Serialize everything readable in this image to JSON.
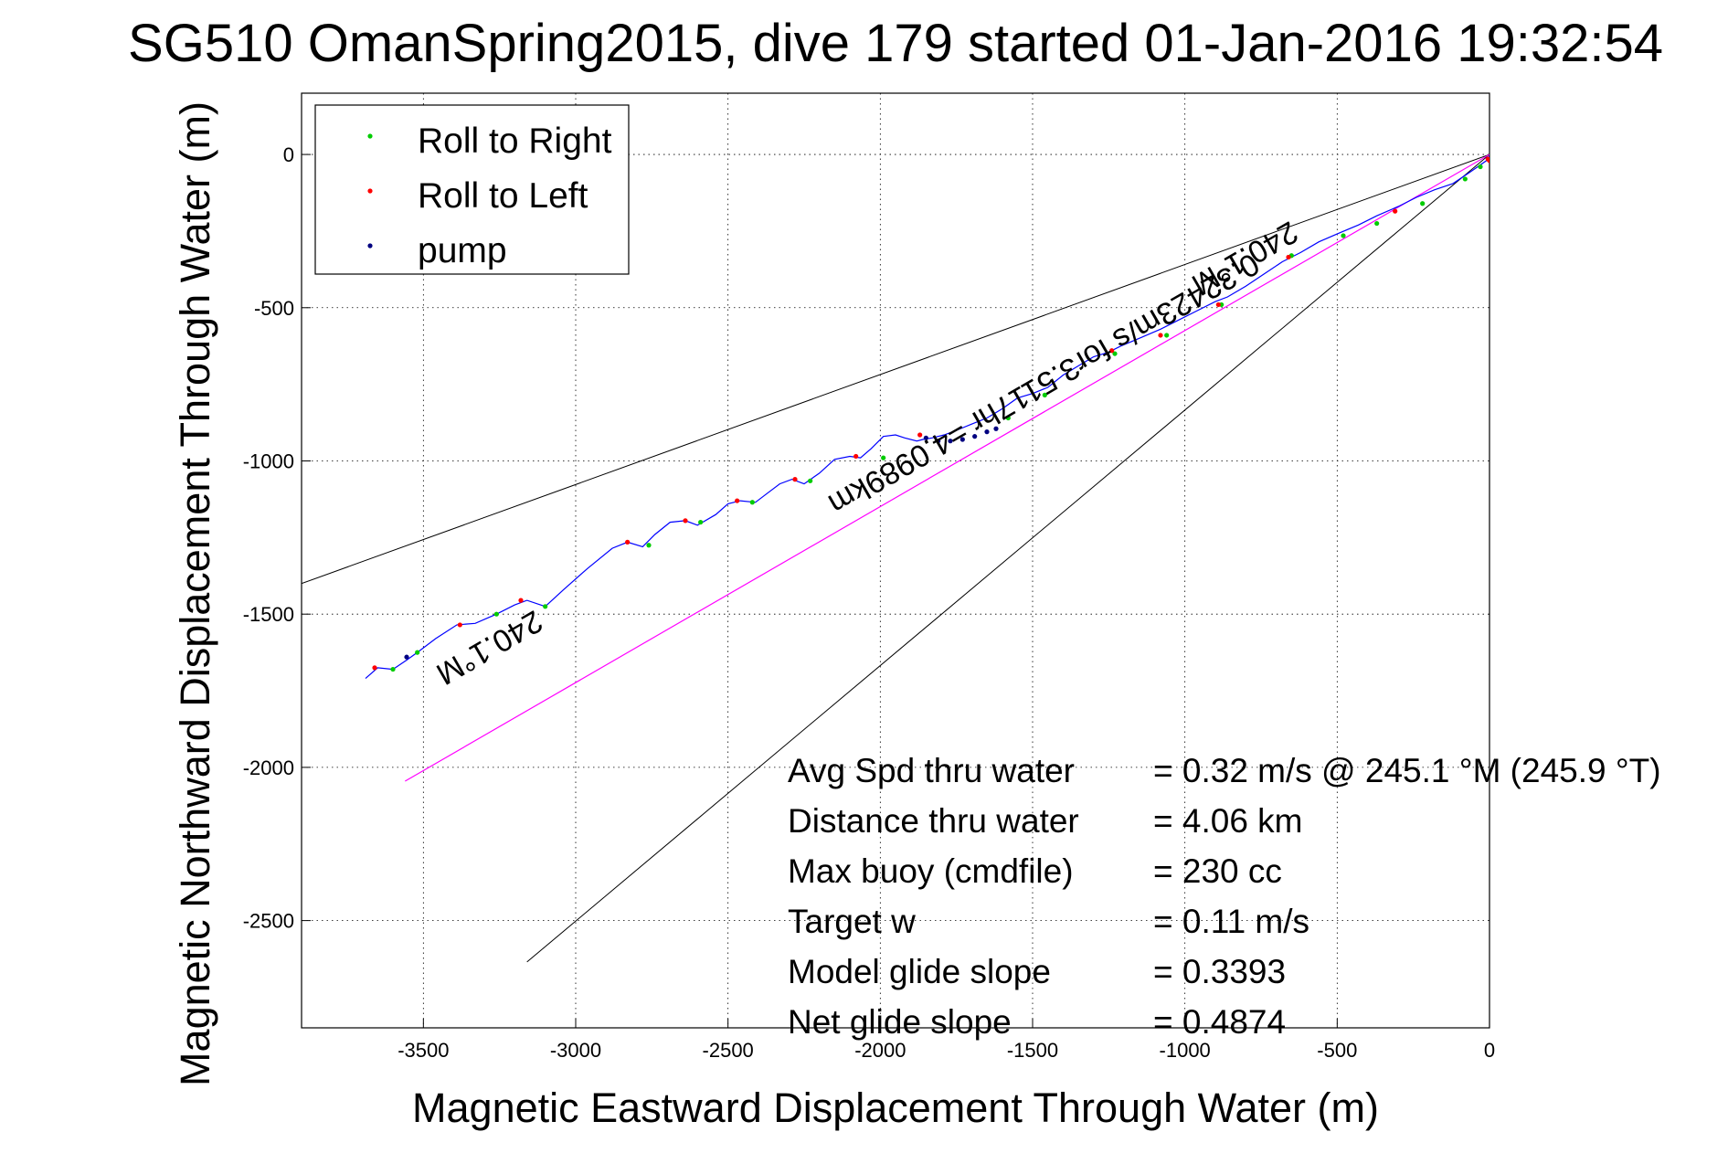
{
  "chart_data": {
    "type": "line",
    "title": "SG510 OmanSpring2015, dive 179 started 01-Jan-2016 19:32:54",
    "xlabel": "Magnetic Eastward Displacement Through Water (m)",
    "ylabel": "Magnetic Northward Displacement Through Water (m)",
    "xlim": [
      -3900,
      0
    ],
    "ylim": [
      -2850,
      200
    ],
    "grid": true,
    "x_ticks": [
      -3500,
      -3000,
      -2500,
      -2000,
      -1500,
      -1000,
      -500,
      0
    ],
    "y_ticks": [
      0,
      -500,
      -1000,
      -1500,
      -2000,
      -2500
    ],
    "legend": {
      "placement": "top-left",
      "entries": [
        {
          "label": "Roll to Right",
          "color": "#00cc00"
        },
        {
          "label": "Roll to Left",
          "color": "#ff0000"
        },
        {
          "label": "pump",
          "color": "#000080"
        }
      ]
    },
    "colors": {
      "track": "#0000ff",
      "heading_line": "#ff00ff",
      "wedge": "#000000"
    },
    "track": {
      "x": [
        -3690,
        -3650,
        -3600,
        -3555,
        -3520,
        -3460,
        -3390,
        -3330,
        -3260,
        -3200,
        -3160,
        -3100,
        -3040,
        -2960,
        -2880,
        -2830,
        -2780,
        -2740,
        -2690,
        -2640,
        -2600,
        -2540,
        -2500,
        -2460,
        -2410,
        -2370,
        -2330,
        -2290,
        -2250,
        -2200,
        -2150,
        -2100,
        -2065,
        -2030,
        -1990,
        -1950,
        -1920,
        -1880,
        -1860,
        -1830,
        -1790,
        -1750,
        -1700,
        -1650,
        -1600,
        -1550,
        -1500,
        -1450,
        -1400,
        -1350,
        -1300,
        -1250,
        -1210,
        -1150,
        -1080,
        -1020,
        -960,
        -900,
        -860,
        -800,
        -740,
        -680,
        -620,
        -560,
        -490,
        -430,
        -370,
        -300,
        -240,
        -180,
        -120,
        -60,
        -10,
        0
      ],
      "y": [
        -1710,
        -1675,
        -1680,
        -1650,
        -1625,
        -1580,
        -1535,
        -1530,
        -1500,
        -1470,
        -1455,
        -1475,
        -1420,
        -1350,
        -1285,
        -1265,
        -1280,
        -1240,
        -1200,
        -1195,
        -1210,
        -1175,
        -1140,
        -1130,
        -1135,
        -1105,
        -1075,
        -1060,
        -1075,
        -1040,
        -995,
        -985,
        -990,
        -960,
        -920,
        -915,
        -925,
        -935,
        -930,
        -925,
        -915,
        -900,
        -880,
        -860,
        -830,
        -795,
        -780,
        -760,
        -720,
        -690,
        -660,
        -645,
        -625,
        -600,
        -570,
        -540,
        -510,
        -480,
        -465,
        -430,
        -390,
        -350,
        -320,
        -285,
        -255,
        -230,
        -200,
        -170,
        -140,
        -115,
        -95,
        -55,
        -20,
        -5
      ]
    },
    "markers": {
      "roll_right": {
        "x": [
          -3600,
          -3520,
          -3260,
          -3100,
          -2760,
          -2590,
          -2420,
          -2230,
          -1990,
          -1580,
          -1460,
          -1230,
          -1060,
          -880,
          -650,
          -480,
          -370,
          -220,
          -80,
          -30
        ],
        "y": [
          -1680,
          -1625,
          -1500,
          -1475,
          -1275,
          -1200,
          -1135,
          -1065,
          -990,
          -860,
          -785,
          -650,
          -590,
          -490,
          -330,
          -265,
          -225,
          -160,
          -80,
          -40
        ]
      },
      "roll_left": {
        "x": [
          -3660,
          -3380,
          -3180,
          -2830,
          -2640,
          -2470,
          -2280,
          -2080,
          -1870,
          -1240,
          -1080,
          -890,
          -660,
          -310,
          -5,
          0
        ],
        "y": [
          -1675,
          -1535,
          -1455,
          -1265,
          -1195,
          -1130,
          -1060,
          -985,
          -915,
          -640,
          -590,
          -490,
          -335,
          -185,
          -15,
          -20
        ]
      },
      "pump": {
        "x": [
          -3555,
          -1850,
          -1810,
          -1770,
          -1730,
          -1690,
          -1650,
          -1620
        ],
        "y": [
          -1640,
          -925,
          -935,
          -935,
          -930,
          -920,
          -905,
          -895
        ]
      }
    },
    "heading_line": {
      "x": [
        -3560,
        0
      ],
      "y": [
        -2045,
        0
      ]
    },
    "wedge_lines": [
      {
        "x": [
          -3900,
          0
        ],
        "y": [
          -1400,
          0
        ]
      },
      {
        "x": [
          -3160,
          0
        ],
        "y": [
          -2635,
          0
        ]
      }
    ],
    "annotations": [
      {
        "text": "240.1°M",
        "x": -3300,
        "y": -1580,
        "rotation": 150
      },
      {
        "text": "240.1°M",
        "x": -820,
        "y": -310,
        "rotation": 150
      },
      {
        "text": "0.32423m/s for3.5117hr =4.0989km",
        "x": -1480,
        "y": -720,
        "rotation": 150
      }
    ],
    "stats": [
      {
        "label": "Avg Spd thru water",
        "value": "=  0.32 m/s @ 245.1 °M (245.9 °T)"
      },
      {
        "label": "Distance thru water",
        "value": "=  4.06 km"
      },
      {
        "label": "Max buoy (cmdfile)",
        "value": "= 230 cc"
      },
      {
        "label": "Target w",
        "value": "= 0.11 m/s"
      },
      {
        "label": "Model glide slope",
        "value": "= 0.3393"
      },
      {
        "label": "Net glide slope",
        "value": "= 0.4874"
      }
    ]
  }
}
